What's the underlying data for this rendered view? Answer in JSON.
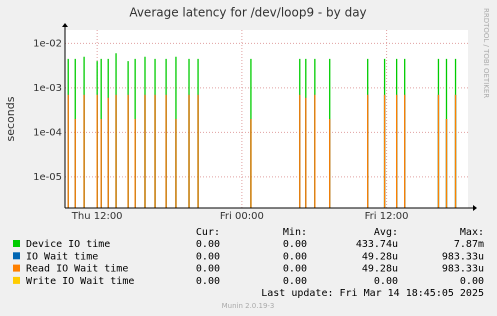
{
  "chart_data": {
    "type": "line",
    "title": "Average latency for /dev/loop9 - by day",
    "y_label": "seconds",
    "side_text": "RRDTOOL / TOBI OETIKER",
    "log_scale": true,
    "grid": true,
    "ylim": [
      2e-06,
      0.02
    ],
    "yticks": [
      {
        "value": 0.01,
        "label": "1e-02"
      },
      {
        "value": 0.001,
        "label": "1e-03"
      },
      {
        "value": 0.0001,
        "label": "1e-04"
      },
      {
        "value": 1e-05,
        "label": "1e-05"
      }
    ],
    "xlim": [
      "Thu 09:20",
      "Fri 18:45"
    ],
    "xticks": [
      "Thu 12:00",
      "Fri 00:00",
      "Fri 12:00"
    ],
    "x": [
      "Thu 09:36",
      "Thu 10:11",
      "Thu 10:55",
      "Thu 12:00",
      "Thu 12:20",
      "Thu 12:55",
      "Thu 13:34",
      "Thu 14:34",
      "Thu 15:09",
      "Thu 15:58",
      "Thu 16:48",
      "Thu 17:43",
      "Thu 18:32",
      "Thu 19:37",
      "Thu 20:22",
      "Fri 00:45",
      "Fri 04:48",
      "Fri 05:18",
      "Fri 06:03",
      "Fri 07:17",
      "Fri 10:26",
      "Fri 11:50",
      "Fri 12:50",
      "Fri 13:30",
      "Fri 16:18",
      "Fri 16:58",
      "Fri 17:43"
    ],
    "legend_headers": [
      "Cur:",
      "Min:",
      "Avg:",
      "Max:"
    ],
    "series": [
      {
        "name": "Device IO time",
        "color": "#00cc00",
        "cur": "0.00",
        "min": "0.00",
        "avg": "433.74u",
        "max": "7.87m",
        "values": [
          0.0045,
          0.0045,
          0.005,
          0.004,
          0.0045,
          0.0045,
          0.006,
          0.004,
          0.0045,
          0.005,
          0.0045,
          0.0045,
          0.005,
          0.0045,
          0.0045,
          0.0045,
          0.0045,
          0.0045,
          0.0045,
          0.0045,
          0.0045,
          0.0045,
          0.0045,
          0.0045,
          0.0045,
          0.0045,
          0.0045
        ]
      },
      {
        "name": "IO Wait time",
        "color": "#0066b3",
        "cur": "0.00",
        "min": "0.00",
        "avg": "49.28u",
        "max": "983.33u",
        "values": [
          0.0007,
          0.0002,
          0.0007,
          0.0007,
          0.0002,
          0.0006,
          0.0007,
          0.0007,
          0.0002,
          0.0007,
          0.0007,
          0.0007,
          0.0002,
          0.0007,
          0.0007,
          0.0002,
          0.0007,
          0.0006,
          0.0007,
          0.0002,
          0.0007,
          0.0007,
          0.0007,
          0.0007,
          0.0007,
          0.0002,
          0.0007
        ]
      },
      {
        "name": "Read IO Wait time",
        "color": "#ff8000",
        "cur": "0.00",
        "min": "0.00",
        "avg": "49.28u",
        "max": "983.33u",
        "values": [
          0.0007,
          0.0002,
          0.0007,
          0.0007,
          0.0002,
          0.0006,
          0.0007,
          0.0007,
          0.0002,
          0.0007,
          0.0007,
          0.0007,
          0.0002,
          0.0007,
          0.0007,
          0.0002,
          0.0007,
          0.0006,
          0.0007,
          0.0002,
          0.0007,
          0.0007,
          0.0007,
          0.0007,
          0.0007,
          0.0002,
          0.0007
        ]
      },
      {
        "name": "Write IO Wait time",
        "color": "#ffcc00",
        "cur": "0.00",
        "min": "0.00",
        "avg": "0.00",
        "max": "0.00",
        "values": [
          0,
          0,
          0,
          0,
          0,
          0,
          0,
          0,
          0,
          0,
          0,
          0,
          0,
          0,
          0,
          0,
          0,
          0,
          0,
          0,
          0,
          0,
          0,
          0,
          0,
          0,
          0
        ]
      }
    ],
    "last_update": "Last update:  Fri Mar 14 18:45:05 2025",
    "footer": "Munin 2.0.19-3"
  }
}
